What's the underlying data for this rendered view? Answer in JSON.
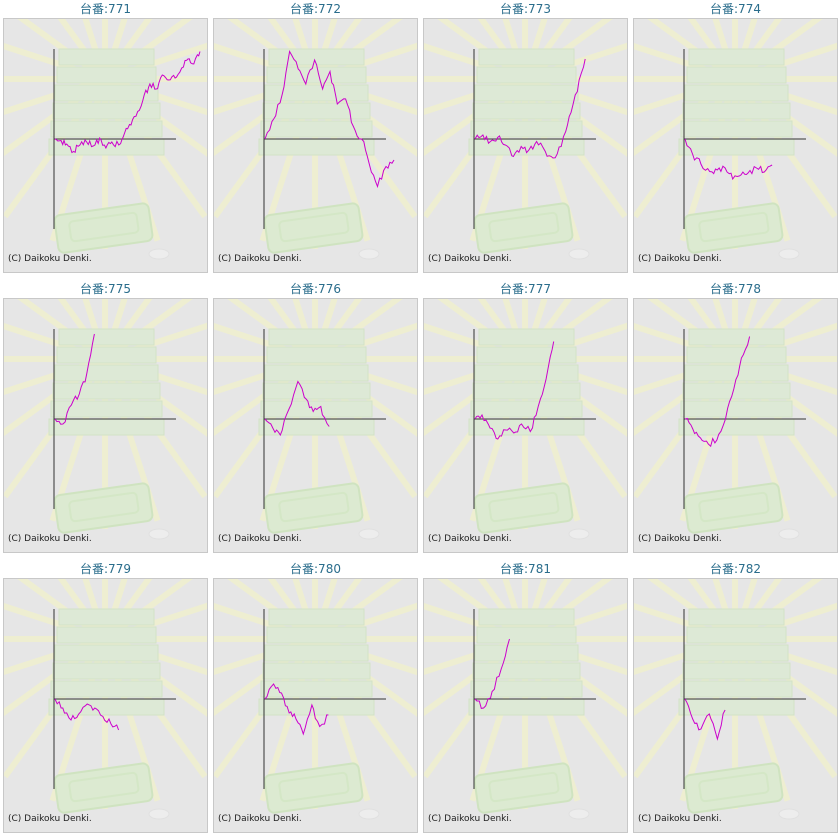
{
  "copyright": "(C) Daikoku Denki.",
  "colors": {
    "line": "#cc00cc",
    "axis": "#333333",
    "panel": "#e6e6e6",
    "title": "#2a6d8c"
  },
  "chart_data": [
    {
      "type": "line",
      "title": "台番:771",
      "values": [
        0,
        -3,
        -10,
        -25,
        -12,
        -6,
        -14,
        2,
        -18,
        -6,
        -12,
        12,
        28,
        55,
        88,
        110,
        100,
        128,
        118,
        122,
        142,
        160,
        150,
        175
      ]
    },
    {
      "type": "line",
      "title": "台番:772",
      "values": [
        0,
        40,
        90,
        175,
        140,
        110,
        158,
        100,
        135,
        70,
        80,
        25,
        0,
        -48,
        -95,
        -55,
        -42
      ]
    },
    {
      "type": "line",
      "title": "台番:773",
      "values": [
        0,
        8,
        -5,
        3,
        -12,
        -35,
        -15,
        -22,
        -5,
        -25,
        -38,
        -15,
        45,
        95,
        160
      ]
    },
    {
      "type": "line",
      "title": "台番:774",
      "values": [
        0,
        -32,
        -50,
        -65,
        -62,
        -58,
        -80,
        -72,
        -68,
        -58,
        -66,
        -52
      ]
    },
    {
      "type": "line",
      "title": "台番:775",
      "values": [
        0,
        -10,
        28,
        50,
        90,
        170
      ]
    },
    {
      "type": "line",
      "title": "台番:776",
      "values": [
        0,
        -18,
        -32,
        20,
        75,
        40,
        15,
        25,
        -15
      ]
    },
    {
      "type": "line",
      "title": "台番:777",
      "values": [
        0,
        8,
        -18,
        -40,
        -22,
        -28,
        -10,
        -25,
        25,
        80,
        155
      ]
    },
    {
      "type": "line",
      "title": "台番:778",
      "values": [
        0,
        -20,
        -38,
        -50,
        -42,
        0,
        60,
        122,
        165
      ]
    },
    {
      "type": "line",
      "title": "台番:779",
      "values": [
        0,
        -18,
        -42,
        -30,
        -10,
        -18,
        -35,
        -50,
        -62
      ]
    },
    {
      "type": "line",
      "title": "台番:780",
      "values": [
        0,
        30,
        12,
        -28,
        -40,
        -70,
        -12,
        -55,
        -32
      ]
    },
    {
      "type": "line",
      "title": "台番:781",
      "values": [
        0,
        -18,
        15,
        60,
        120
      ]
    },
    {
      "type": "line",
      "title": "台番:782",
      "values": [
        0,
        -40,
        -60,
        -30,
        -80,
        -22
      ]
    }
  ]
}
